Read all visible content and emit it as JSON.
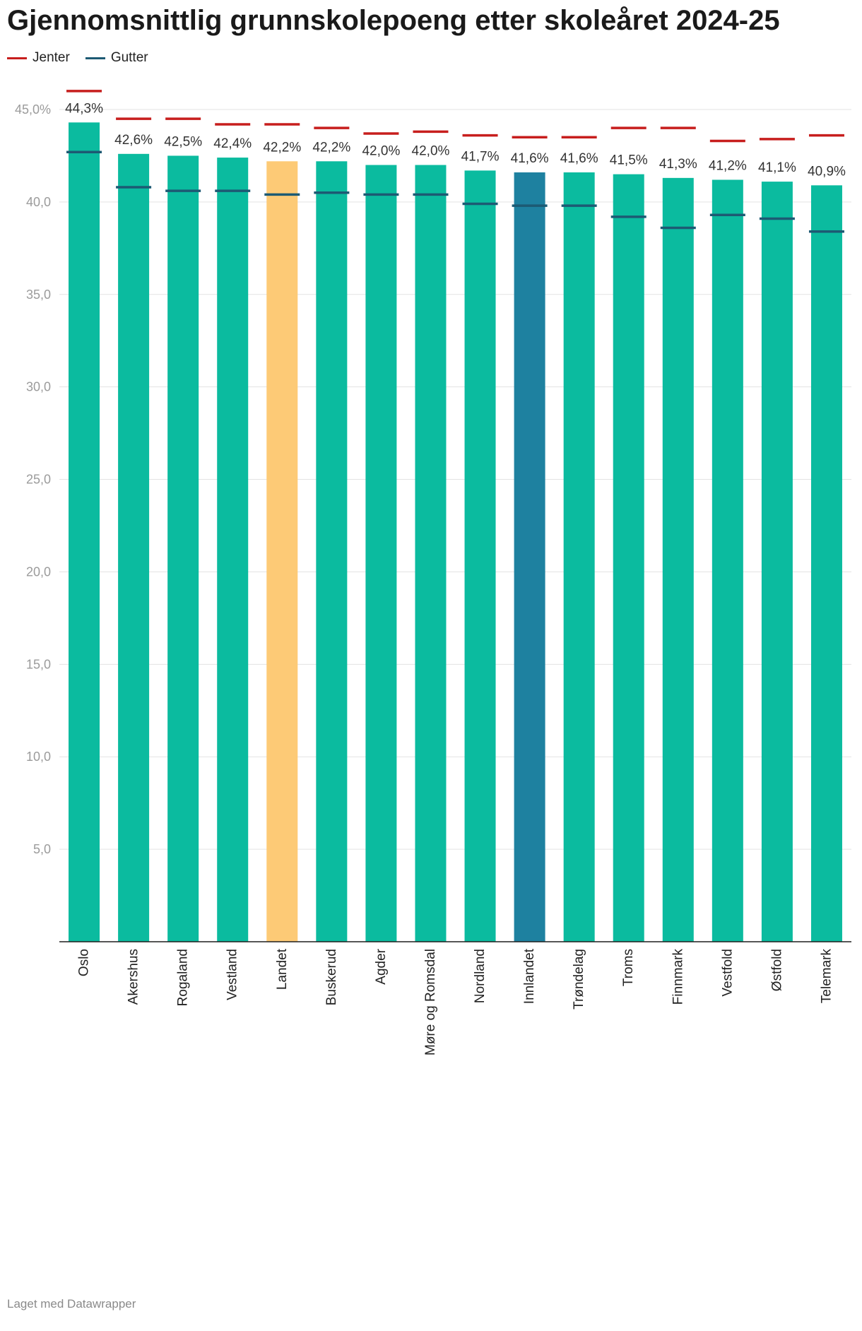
{
  "chart_data": {
    "type": "bar",
    "title": "Gjennomsnittlig grunnskolepoeng etter skoleåret 2024-25",
    "xlabel": "",
    "ylabel": "",
    "ylim": [
      0,
      45
    ],
    "yticks": [
      5,
      10,
      15,
      20,
      25,
      30,
      35,
      40,
      45
    ],
    "ytick_labels": [
      "5,0",
      "10,0",
      "15,0",
      "20,0",
      "25,0",
      "30,0",
      "35,0",
      "40,0",
      "45,0%"
    ],
    "grid": true,
    "legend_position": "top-left",
    "categories": [
      "Oslo",
      "Akershus",
      "Rogaland",
      "Vestland",
      "Landet",
      "Buskerud",
      "Agder",
      "Møre og Romsdal",
      "Nordland",
      "Innlandet",
      "Trøndelag",
      "Troms",
      "Finnmark",
      "Vestfold",
      "Østfold",
      "Telemark"
    ],
    "series": [
      {
        "values": [
          44.3,
          42.6,
          42.5,
          42.4,
          42.2,
          42.2,
          42.0,
          42.0,
          41.7,
          41.6,
          41.6,
          41.5,
          41.3,
          41.2,
          41.1,
          40.9
        ],
        "value_labels": [
          "44,3%",
          "42,6%",
          "42,5%",
          "42,4%",
          "42,2%",
          "42,2%",
          "42,0%",
          "42,0%",
          "41,7%",
          "41,6%",
          "41,6%",
          "41,5%",
          "41,3%",
          "41,2%",
          "41,1%",
          "40,9%"
        ]
      },
      {
        "name": "Jenter",
        "color": "#c71e1d",
        "values": [
          46.0,
          44.5,
          44.5,
          44.2,
          44.2,
          44.0,
          43.7,
          43.8,
          43.6,
          43.5,
          43.5,
          44.0,
          44.0,
          43.3,
          43.4,
          43.6
        ]
      },
      {
        "name": "Gutter",
        "color": "#1d5a73",
        "values": [
          42.7,
          40.8,
          40.6,
          40.6,
          40.4,
          40.5,
          40.4,
          40.4,
          39.9,
          39.8,
          39.8,
          39.2,
          38.6,
          39.3,
          39.1,
          38.4
        ]
      }
    ],
    "colors": {
      "bar": "#0bbb9f",
      "highlight": {
        "Landet": "#fdca76",
        "Innlandet": "#1e81a0"
      },
      "axis": "#1f1f1f",
      "grid": "#e3e3e3"
    }
  },
  "footer": {
    "credit": "Laget med Datawrapper"
  }
}
